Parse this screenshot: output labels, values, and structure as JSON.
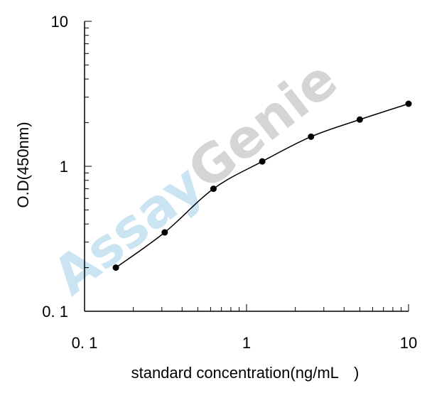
{
  "chart_data": {
    "type": "line",
    "title": "",
    "xlabel": "standard concentration(ng/mL　)",
    "ylabel": "O.D(450nm)",
    "x_scale": "log",
    "y_scale": "log",
    "xlim": [
      0.1,
      10
    ],
    "ylim": [
      0.1,
      10
    ],
    "x_ticks": [
      "0. 1",
      "1",
      "10"
    ],
    "y_ticks": [
      "0. 1",
      "1",
      "10"
    ],
    "grid": false,
    "series": [
      {
        "x": [
          0.156,
          0.3125,
          0.625,
          1.25,
          2.5,
          5,
          10
        ],
        "y": [
          0.2,
          0.35,
          0.7,
          1.08,
          1.6,
          2.1,
          2.7
        ]
      }
    ],
    "colors": {
      "line": "#000000",
      "marker": "#000000",
      "watermark_assay": "#9fcfe8",
      "watermark_genie": "#b3b3b3"
    }
  },
  "watermark": {
    "part1": "Assay",
    "part2": "Genie"
  }
}
